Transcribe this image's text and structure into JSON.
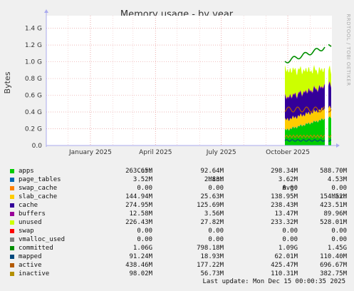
{
  "chart_data": {
    "type": "area",
    "title": "Memory usage - by year",
    "ylabel": "Bytes",
    "side_label": "RRDTOOL / TOBI OETIKER",
    "ylim": [
      0,
      1.55
    ],
    "y_ticks": [
      "0.0",
      "0.2 G",
      "0.4 G",
      "0.6 G",
      "0.8 G",
      "1.0 G",
      "1.2 G",
      "1.4 G"
    ],
    "y_tick_values": [
      0,
      0.2,
      0.4,
      0.6,
      0.8,
      1.0,
      1.2,
      1.4
    ],
    "x_ticks": [
      "January 2025",
      "April 2025",
      "July 2025",
      "October 2025"
    ],
    "x_tick_values": [
      "2025-01",
      "2025-04",
      "2025-07",
      "2025-10"
    ],
    "x_range": [
      "2024-11",
      "2025-12"
    ],
    "grid": true,
    "data_start": "2025-09-27",
    "gap": [
      "2025-11-22",
      "2025-11-26"
    ],
    "series": [
      {
        "name": "apps",
        "color": "#00cc00",
        "cur": "263.65M",
        "min": "92.64M",
        "avg": "298.34M",
        "max": "588.70M"
      },
      {
        "name": "page_tables",
        "color": "#0066b3",
        "cur": "3.52M",
        "min": "2.83M",
        "avg": "3.62M",
        "max": "4.53M"
      },
      {
        "name": "swap_cache",
        "color": "#ff8000",
        "cur": "0.00",
        "min": "0.00",
        "avg": "0.00",
        "max": "0.00"
      },
      {
        "name": "slab_cache",
        "color": "#ffcc00",
        "cur": "144.94M",
        "min": "25.63M",
        "avg": "138.95M",
        "max": "154.52M"
      },
      {
        "name": "cache",
        "color": "#330099",
        "cur": "274.95M",
        "min": "125.69M",
        "avg": "238.43M",
        "max": "423.51M"
      },
      {
        "name": "buffers",
        "color": "#990099",
        "cur": "12.58M",
        "min": "3.56M",
        "avg": "13.47M",
        "max": "89.96M"
      },
      {
        "name": "unused",
        "color": "#ccff00",
        "cur": "226.43M",
        "min": "27.82M",
        "avg": "233.32M",
        "max": "528.01M"
      },
      {
        "name": "swap",
        "color": "#ff0000",
        "cur": "0.00",
        "min": "0.00",
        "avg": "0.00",
        "max": "0.00"
      },
      {
        "name": "vmalloc_used",
        "color": "#808080",
        "cur": "0.00",
        "min": "0.00",
        "avg": "0.00",
        "max": "0.00"
      },
      {
        "name": "committed",
        "color": "#008f00",
        "cur": "1.06G",
        "min": "798.18M",
        "avg": "1.09G",
        "max": "1.45G"
      },
      {
        "name": "mapped",
        "color": "#00487d",
        "cur": "91.24M",
        "min": "18.93M",
        "avg": "62.01M",
        "max": "110.40M"
      },
      {
        "name": "active",
        "color": "#b35a00",
        "cur": "438.46M",
        "min": "177.22M",
        "avg": "425.47M",
        "max": "696.67M"
      },
      {
        "name": "inactive",
        "color": "#b38f00",
        "cur": "98.02M",
        "min": "56.73M",
        "avg": "110.31M",
        "max": "382.75M"
      }
    ]
  },
  "legend_headers": {
    "cur": "Cur:",
    "min": "Min:",
    "avg": "Avg:",
    "max": "Max:"
  },
  "footer": "Last update: Mon Dec 15 00:00:35 2025"
}
